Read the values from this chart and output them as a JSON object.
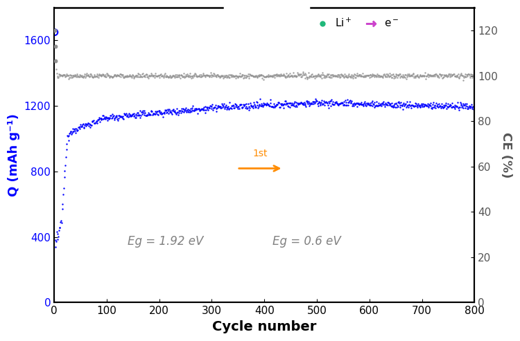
{
  "xlabel": "Cycle number",
  "ylabel_left": "Q (mAh g⁻¹)",
  "ylabel_right": "CE (%)",
  "xlim": [
    0,
    800
  ],
  "ylim_left": [
    0,
    1800
  ],
  "ylim_right": [
    0,
    130
  ],
  "yticks_left": [
    0,
    400,
    800,
    1200,
    1600
  ],
  "yticks_right": [
    0,
    20,
    40,
    60,
    80,
    100,
    120
  ],
  "xticks": [
    0,
    100,
    200,
    300,
    400,
    500,
    600,
    700,
    800
  ],
  "capacity_color": "#0000ff",
  "ce_color": "#909090",
  "annotation_eg1": "Eg = 1.92 eV",
  "annotation_eg2": "Eg = 0.6 eV",
  "legend_li": "Li$^+$",
  "legend_e": "e$^-$",
  "inset_arrow_text": "1st",
  "background_color": "#ffffff",
  "top_line1_x": [
    0.0,
    0.4
  ],
  "top_line2_x": [
    0.61,
    1.0
  ]
}
